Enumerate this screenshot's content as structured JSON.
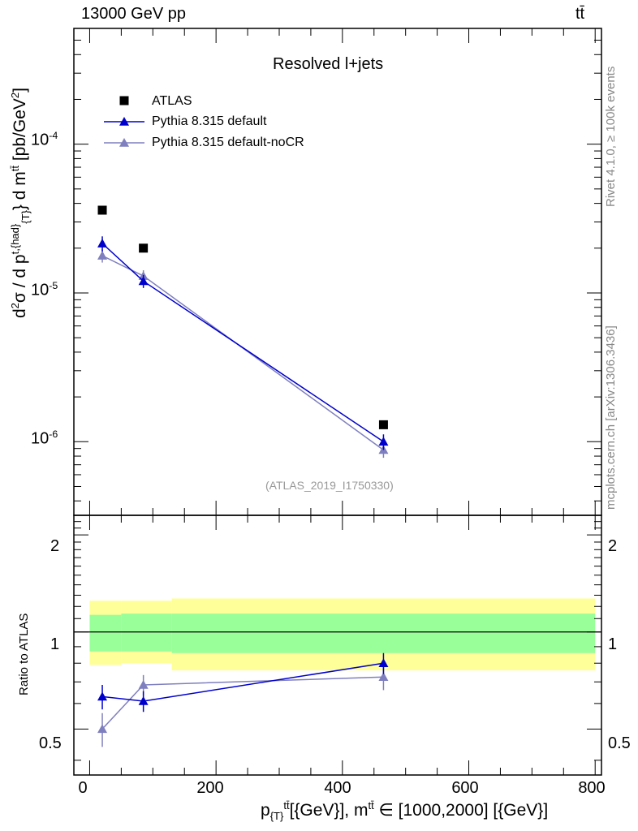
{
  "header": {
    "energy": "13000 GeV pp",
    "process": "tt̄"
  },
  "side_labels": {
    "rivet": "Rivet 4.1.0, ≥ 100k events",
    "source": "mcplots.cern.ch [arXiv:1306.3436]"
  },
  "chart_data": {
    "type": "line",
    "title": "Resolved l+jets",
    "analysis_tag": "(ATLAS_2019_I1750330)",
    "xlabel": {
      "p": "p",
      "p_sub": "{T}",
      "p_sup": "tt̄",
      "rest1": "[{GeV}], m",
      "m_sup": "tt̄",
      "rest2": " ∈ [1000,2000] [{GeV}]"
    },
    "ylabel": {
      "d2": "d",
      "d2_sup": "2",
      "sigma": "σ / d p",
      "p_sup": "t,{had}",
      "p_sub": "{T}",
      "rest": "} d m",
      "m_sup": "tt̄",
      "units": " [pb/GeV",
      "units_sup": "2",
      "units_end": "]"
    },
    "ratio_ylabel": "Ratio to ATLAS",
    "xlim": [
      -25,
      810
    ],
    "ylim": [
      3.2e-07,
      0.0006
    ],
    "ratio_ylim": [
      0.36,
      2.3
    ],
    "x_ticks": [
      "0",
      "200",
      "400",
      "600",
      "800"
    ],
    "y_ticks": [
      {
        "base": "10",
        "exp": "-4",
        "value": 0.0001
      },
      {
        "base": "10",
        "exp": "-5",
        "value": 1e-05
      },
      {
        "base": "10",
        "exp": "-6",
        "value": 1e-06
      }
    ],
    "ratio_ticks": [
      {
        "label": "2",
        "value": 2
      },
      {
        "label": "1",
        "value": 1
      },
      {
        "label": "0.5",
        "value": 0.5
      }
    ],
    "bins": [
      [
        0,
        50
      ],
      [
        50,
        130
      ],
      [
        130,
        800
      ]
    ],
    "x": [
      20,
      85,
      465
    ],
    "series": [
      {
        "name": "ATLAS",
        "color": "#000000",
        "marker": "square",
        "values": [
          3.6e-05,
          2e-05,
          1.3e-06
        ],
        "band_inner": [
          [
            0.87,
            1.13
          ],
          [
            0.87,
            1.14
          ],
          [
            0.86,
            1.14
          ]
        ],
        "band_outer": [
          [
            0.79,
            1.25
          ],
          [
            0.8,
            1.25
          ],
          [
            0.76,
            1.27
          ]
        ]
      },
      {
        "name": "Pythia 8.315 default",
        "color": "#0000cc",
        "marker": "triangle",
        "values": [
          2.15e-05,
          1.2e-05,
          1e-06
        ],
        "errors": [
          2.5e-06,
          1.2e-06,
          1.2e-07
        ],
        "ratio": [
          0.63,
          0.61,
          0.8
        ],
        "ratio_err": [
          0.055,
          0.045,
          0.06
        ]
      },
      {
        "name": "Pythia 8.315 default-noCR",
        "color": "#7f7fbf",
        "marker": "triangle",
        "values": [
          1.78e-05,
          1.3e-05,
          8.8e-07
        ],
        "errors": [
          1.8e-06,
          1.2e-06,
          1e-07
        ],
        "ratio": [
          0.5,
          0.685,
          0.725
        ],
        "ratio_err": [
          0.06,
          0.05,
          0.065
        ]
      }
    ],
    "band_colors": {
      "inner": "#99ff99",
      "outer": "#ffff99"
    }
  }
}
